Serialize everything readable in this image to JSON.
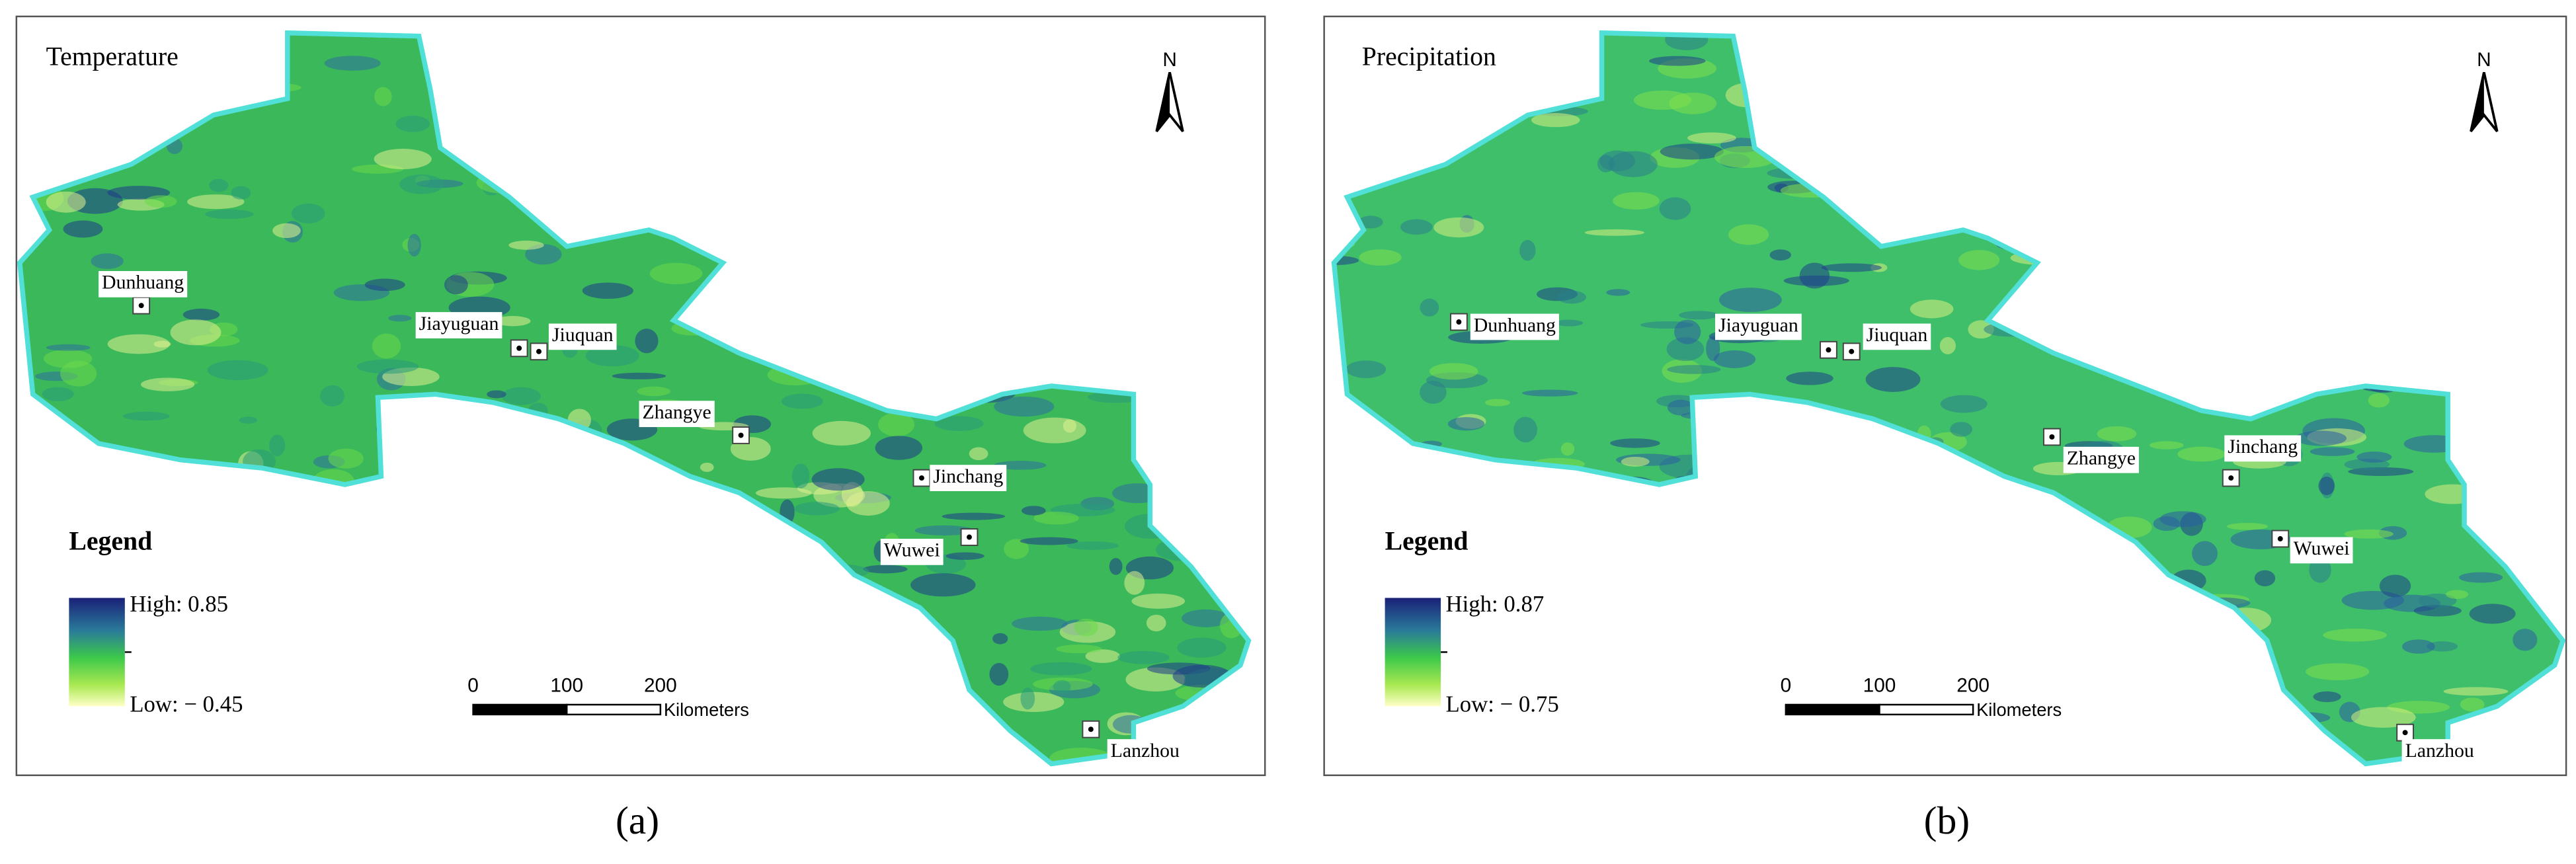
{
  "panels": [
    {
      "title": "Temperature",
      "north": "N",
      "cities": [
        "Dunhuang",
        "Jiayuguan",
        "Jiuquan",
        "Zhangye",
        "Jinchang",
        "Wuwei",
        "Lanzhou"
      ],
      "legend": {
        "title": "Legend",
        "high": "High: 0.85",
        "low": "Low: − 0.45"
      },
      "scale_bar": {
        "ticks": [
          "0",
          "100",
          "200"
        ],
        "unit": "Kilometers"
      },
      "caption": "(a)"
    },
    {
      "title": "Precipitation",
      "north": "N",
      "cities": [
        "Dunhuang",
        "Jiayuguan",
        "Jiuquan",
        "Zhangye",
        "Jinchang",
        "Wuwei",
        "Lanzhou"
      ],
      "legend": {
        "title": "Legend",
        "high": "High: 0.87",
        "low": "Low: − 0.75"
      },
      "scale_bar": {
        "ticks": [
          "0",
          "100",
          "200"
        ],
        "unit": "Kilometers"
      },
      "caption": "(b)"
    }
  ]
}
